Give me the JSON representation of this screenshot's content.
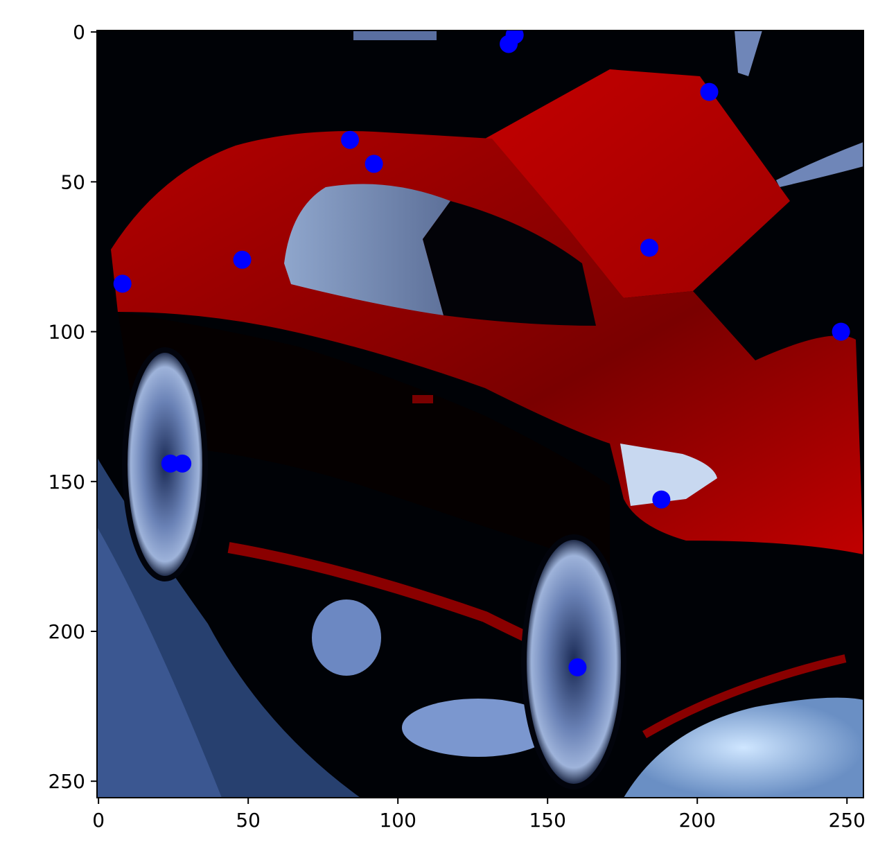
{
  "chart_data": {
    "type": "scatter",
    "title": "",
    "xlabel": "",
    "ylabel": "",
    "xlim": [
      -0.5,
      255.5
    ],
    "ylim": [
      255.5,
      -0.5
    ],
    "x_ticks": [
      0,
      50,
      100,
      150,
      200,
      250
    ],
    "y_ticks": [
      0,
      50,
      100,
      150,
      200,
      250
    ],
    "x_tick_labels": [
      "0",
      "50",
      "100",
      "150",
      "200",
      "250"
    ],
    "y_tick_labels": [
      "0",
      "50",
      "100",
      "150",
      "200",
      "250"
    ],
    "grid": false,
    "background_image": "red-sports-car-photo-blue-tinted",
    "marker_color": "#0000ff",
    "series": [
      {
        "x": [
          137,
          139,
          84,
          92,
          48,
          8,
          184,
          204,
          248,
          24,
          28,
          188,
          160
        ],
        "y": [
          4,
          1,
          36,
          44,
          76,
          84,
          72,
          20,
          100,
          144,
          144,
          156,
          212
        ]
      }
    ]
  }
}
